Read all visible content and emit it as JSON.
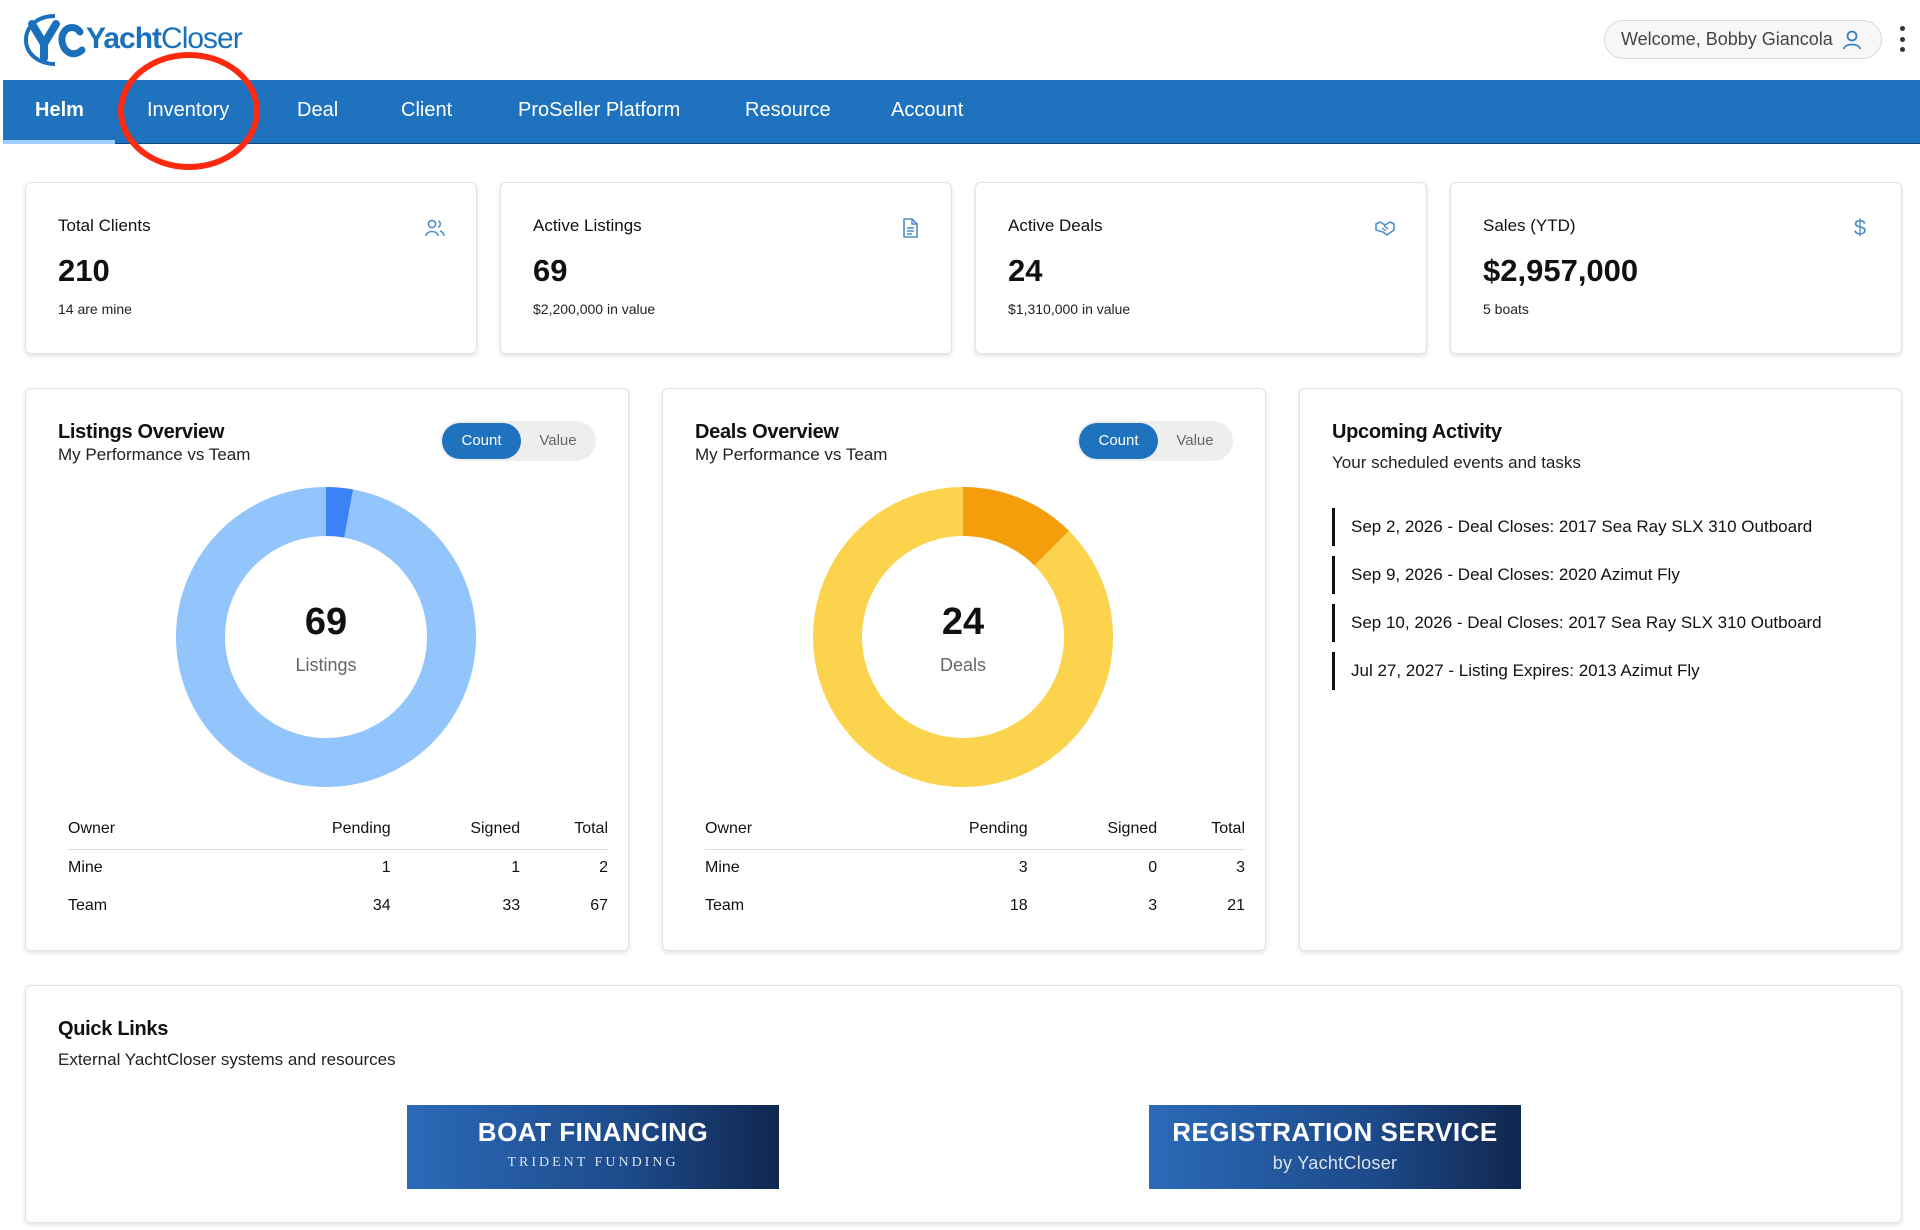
{
  "brand": {
    "name_bold": "Yacht",
    "name_light": "Closer",
    "mark": "yc"
  },
  "header": {
    "welcome": "Welcome, Bobby Giancola"
  },
  "nav": {
    "items": [
      {
        "label": "Helm",
        "active": true
      },
      {
        "label": "Inventory"
      },
      {
        "label": "Deal"
      },
      {
        "label": "Client"
      },
      {
        "label": "ProSeller Platform"
      },
      {
        "label": "Resource"
      },
      {
        "label": "Account"
      }
    ]
  },
  "stats": [
    {
      "title": "Total Clients",
      "value": "210",
      "sub": "14 are mine",
      "icon": "users-icon"
    },
    {
      "title": "Active Listings",
      "value": "69",
      "sub": "$2,200,000 in value",
      "icon": "document-icon"
    },
    {
      "title": "Active Deals",
      "value": "24",
      "sub": "$1,310,000 in value",
      "icon": "handshake-icon"
    },
    {
      "title": "Sales (YTD)",
      "value": "$2,957,000",
      "sub": "5 boats",
      "icon": "dollar-icon"
    }
  ],
  "listings": {
    "title": "Listings Overview",
    "subtitle": "My Performance vs Team",
    "toggle": {
      "on": "Count",
      "off": "Value"
    },
    "center_value": "69",
    "center_label": "Listings",
    "columns": [
      "Owner",
      "Pending",
      "Signed",
      "Total"
    ],
    "rows": [
      [
        "Mine",
        "1",
        "1",
        "2"
      ],
      [
        "Team",
        "34",
        "33",
        "67"
      ]
    ],
    "colors": {
      "mine": "#3b82f6",
      "team": "#93c5fd"
    }
  },
  "deals": {
    "title": "Deals Overview",
    "subtitle": "My Performance vs Team",
    "toggle": {
      "on": "Count",
      "off": "Value"
    },
    "center_value": "24",
    "center_label": "Deals",
    "columns": [
      "Owner",
      "Pending",
      "Signed",
      "Total"
    ],
    "rows": [
      [
        "Mine",
        "3",
        "0",
        "3"
      ],
      [
        "Team",
        "18",
        "3",
        "21"
      ]
    ],
    "colors": {
      "mine": "#f59e0b",
      "team": "#fcd34d"
    }
  },
  "activity": {
    "title": "Upcoming Activity",
    "subtitle": "Your scheduled events and tasks",
    "items": [
      "Sep 2, 2026 - Deal Closes: 2017 Sea Ray SLX 310 Outboard",
      "Sep 9, 2026 - Deal Closes: 2020 Azimut Fly",
      "Sep 10, 2026 - Deal Closes: 2017 Sea Ray SLX 310 Outboard",
      "Jul 27, 2027 - Listing Expires: 2013 Azimut Fly"
    ]
  },
  "quick_links": {
    "title": "Quick Links",
    "subtitle": "External YachtCloser systems and resources",
    "banners": [
      {
        "line1": "BOAT FINANCING",
        "line2": "TRIDENT FUNDING"
      },
      {
        "line1": "REGISTRATION SERVICE",
        "line2": "by YachtCloser"
      }
    ]
  },
  "chart_data": [
    {
      "type": "pie",
      "categories": [
        "Mine",
        "Team"
      ],
      "values": [
        2,
        67
      ],
      "title": "Listings Overview"
    },
    {
      "type": "pie",
      "categories": [
        "Mine",
        "Team"
      ],
      "values": [
        3,
        21
      ],
      "title": "Deals Overview"
    }
  ]
}
